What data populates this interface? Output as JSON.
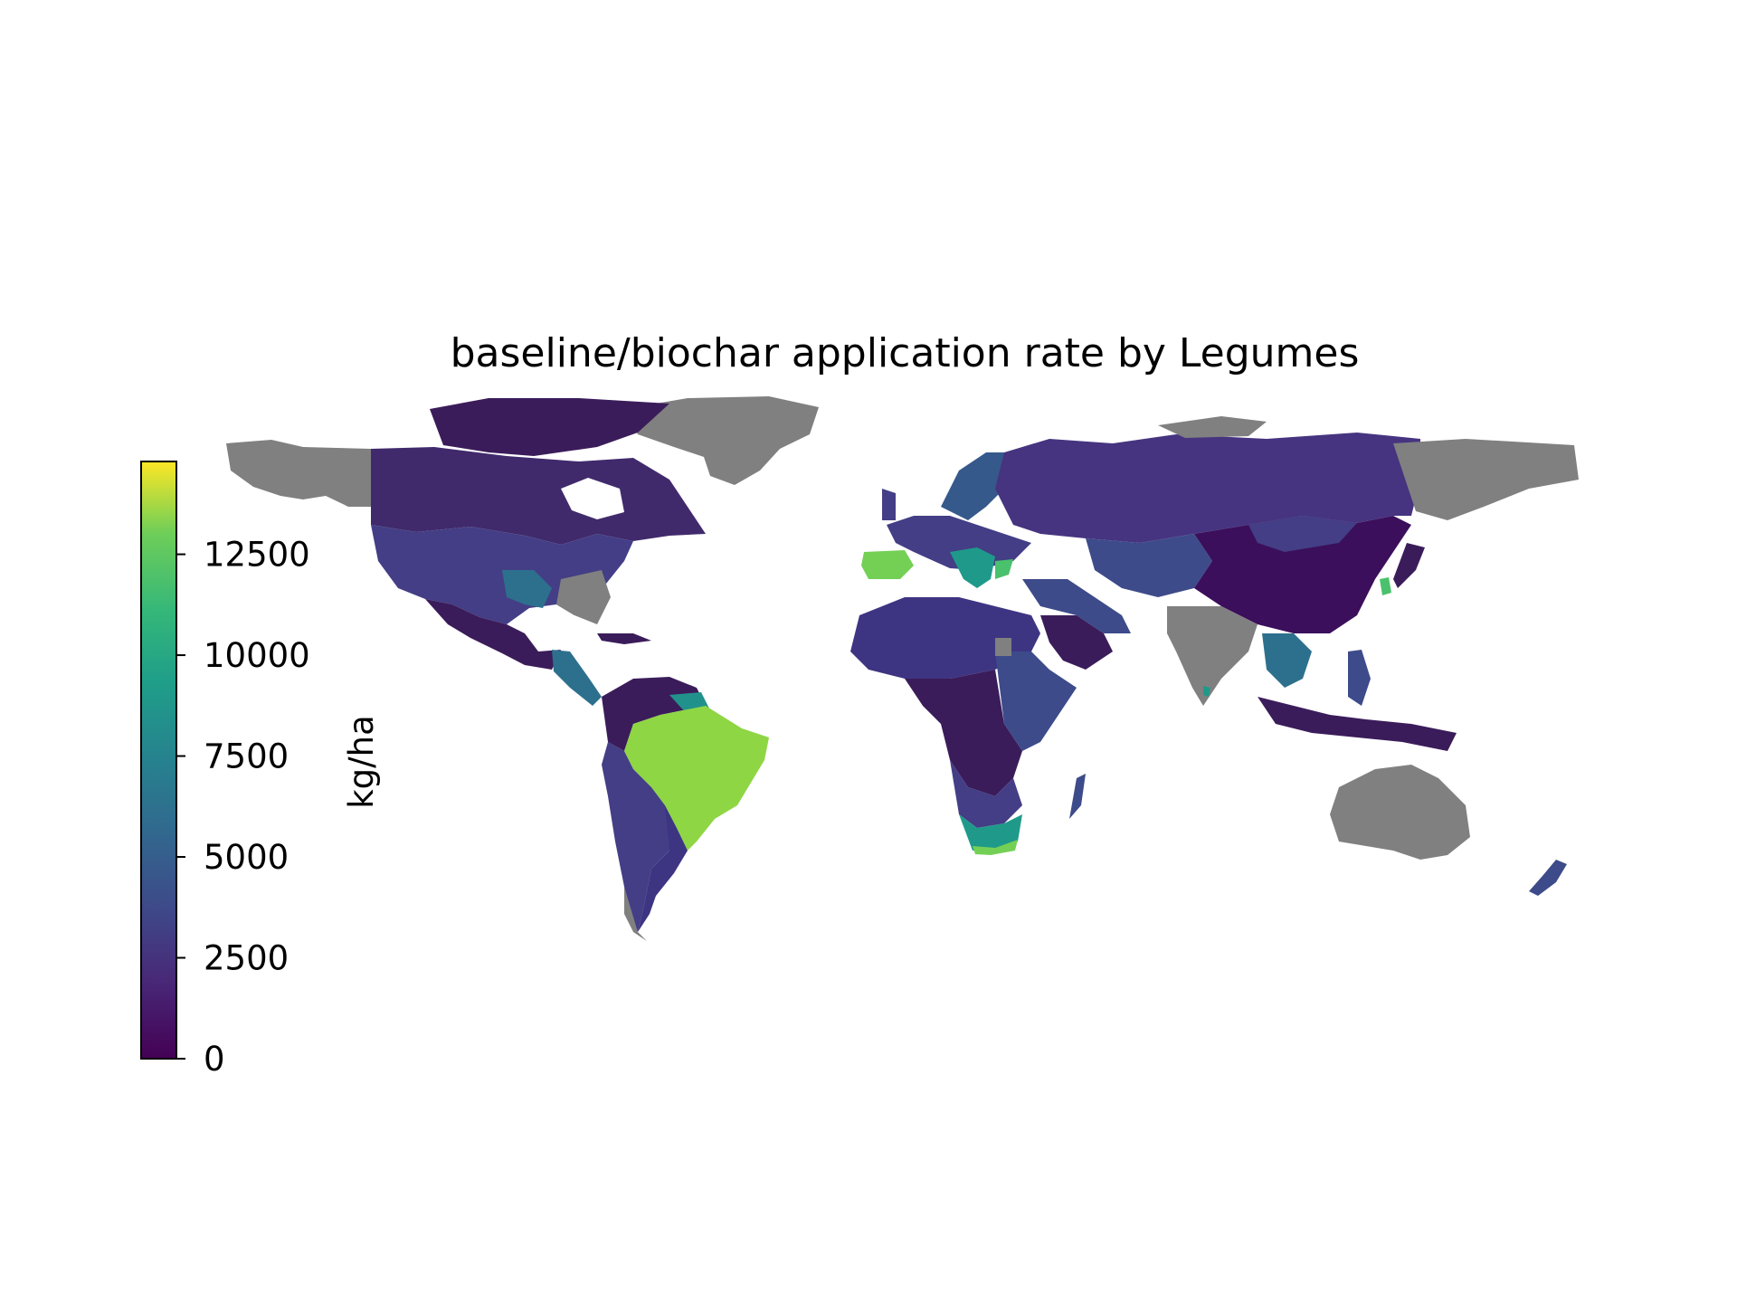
{
  "title": "baseline/biochar application rate by Legumes",
  "colorbar": {
    "label": "kg/ha",
    "min": 0,
    "max": 14800,
    "ticks": [
      0,
      2500,
      5000,
      7500,
      10000,
      12500
    ],
    "tick_labels": [
      "0",
      "2500",
      "5000",
      "7500",
      "10000",
      "12500"
    ],
    "colormap": "viridis"
  },
  "colors": {
    "no_data": "#808080",
    "low": "#3b1c5a",
    "mid": "#35598b",
    "teal": "#1f9a8a",
    "green": "#74d055",
    "lime": "#8ed644",
    "yellow": "#fde725"
  },
  "regions": [
    {
      "name": "Brazil",
      "value": 13500
    },
    {
      "name": "Spain",
      "value": 11500
    },
    {
      "name": "South Africa",
      "value": 9500
    },
    {
      "name": "South Korea",
      "value": 10500
    },
    {
      "name": "Sri Lanka",
      "value": 8200
    },
    {
      "name": "Balkans",
      "value": 8000
    },
    {
      "name": "Greece",
      "value": 9000
    },
    {
      "name": "Scandinavia",
      "value": 5000
    },
    {
      "name": "Central Europe",
      "value": 4000
    },
    {
      "name": "Canada",
      "value": 1500
    },
    {
      "name": "United States",
      "value": 2800
    },
    {
      "name": "Mexico",
      "value": 2000
    },
    {
      "name": "Central America",
      "value": 5500
    },
    {
      "name": "Russia",
      "value": 2200
    },
    {
      "name": "Kazakhstan",
      "value": 3200
    },
    {
      "name": "Middle East",
      "value": 3000
    },
    {
      "name": "Saudi Arabia",
      "value": 1200
    },
    {
      "name": "China",
      "value": 600
    },
    {
      "name": "Japan",
      "value": 1000
    },
    {
      "name": "Southeast Asia",
      "value": 5000
    },
    {
      "name": "Philippines",
      "value": 3500
    },
    {
      "name": "Indonesia",
      "value": 1200
    },
    {
      "name": "North Africa",
      "value": 2000
    },
    {
      "name": "East Africa",
      "value": 3200
    },
    {
      "name": "Central Africa",
      "value": 1500
    },
    {
      "name": "Madagascar",
      "value": 3800
    },
    {
      "name": "Andes",
      "value": 1800
    },
    {
      "name": "Argentina",
      "value": 2200
    },
    {
      "name": "New Zealand",
      "value": 3000
    },
    {
      "name": "Australia",
      "value": null
    },
    {
      "name": "India",
      "value": null
    },
    {
      "name": "Greenland",
      "value": null
    },
    {
      "name": "Alaska",
      "value": null
    }
  ]
}
